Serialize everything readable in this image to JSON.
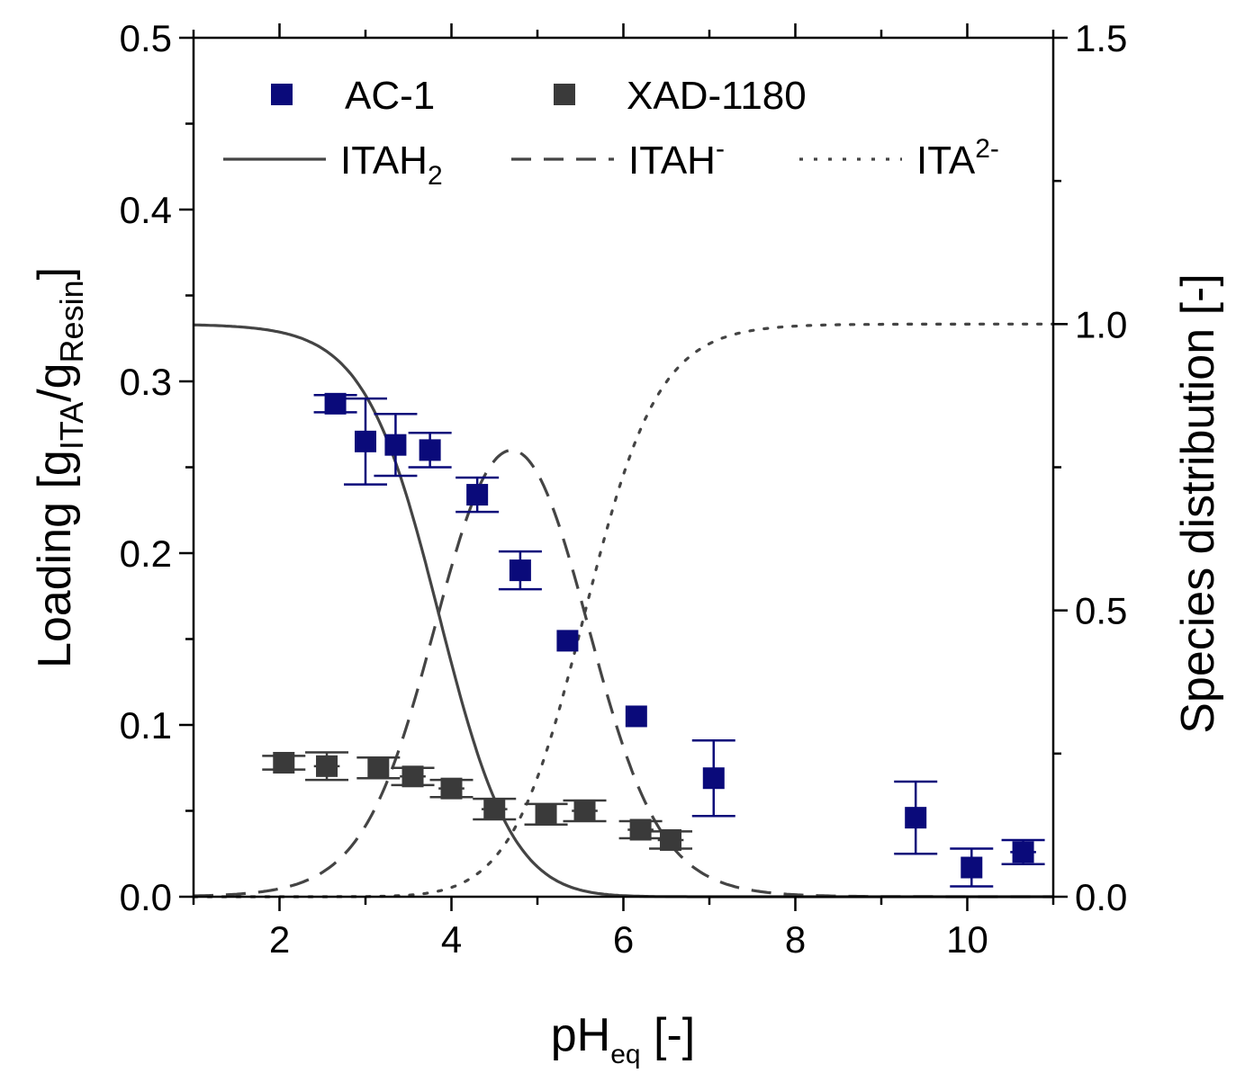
{
  "chart_data": {
    "type": "scatter",
    "x_axis": {
      "label": "pH",
      "label_sub": "eq",
      "label_suffix": " [-]",
      "range": [
        1,
        11
      ],
      "ticks": [
        2,
        4,
        6,
        8,
        10
      ],
      "tick_labels": [
        "2",
        "4",
        "6",
        "8",
        "10"
      ]
    },
    "y_axis_left": {
      "label_parts": [
        "Loading [g",
        "ITA",
        "/g",
        "Resin",
        "]"
      ],
      "range": [
        0,
        0.5
      ],
      "ticks": [
        0.0,
        0.1,
        0.2,
        0.3,
        0.4,
        0.5
      ],
      "tick_labels": [
        "0.0",
        "0.1",
        "0.2",
        "0.3",
        "0.4",
        "0.5"
      ]
    },
    "y_axis_right": {
      "label": "Species distribution [-]",
      "range": [
        0,
        1.5
      ],
      "ticks": [
        0.0,
        0.5,
        1.0,
        1.5
      ],
      "tick_labels": [
        "0.0",
        "0.5",
        "1.0",
        "1.5"
      ]
    },
    "series": [
      {
        "name": "AC-1",
        "color": "#0a0a7a",
        "axis": "left",
        "points": [
          {
            "x": 2.65,
            "y": 0.287,
            "yerr": 0.005,
            "xerr": 0.08
          },
          {
            "x": 3.0,
            "y": 0.265,
            "yerr": 0.025,
            "xerr": 0.0
          },
          {
            "x": 3.35,
            "y": 0.263,
            "yerr": 0.018,
            "xerr": 0.0
          },
          {
            "x": 3.75,
            "y": 0.26,
            "yerr": 0.01,
            "xerr": 0.12
          },
          {
            "x": 4.3,
            "y": 0.234,
            "yerr": 0.01,
            "xerr": 0.1
          },
          {
            "x": 4.8,
            "y": 0.19,
            "yerr": 0.011,
            "xerr": 0.12
          },
          {
            "x": 5.35,
            "y": 0.149,
            "yerr": 0.0,
            "xerr": 0.12
          },
          {
            "x": 6.15,
            "y": 0.105,
            "yerr": 0.0,
            "xerr": 0.12
          },
          {
            "x": 7.05,
            "y": 0.069,
            "yerr": 0.022,
            "xerr": 0.08
          },
          {
            "x": 9.4,
            "y": 0.046,
            "yerr": 0.021,
            "xerr": 0.1
          },
          {
            "x": 10.05,
            "y": 0.017,
            "yerr": 0.011,
            "xerr": 0.1
          },
          {
            "x": 10.65,
            "y": 0.026,
            "yerr": 0.007,
            "xerr": 0.15
          }
        ]
      },
      {
        "name": "XAD-1180",
        "color": "#3a3a3a",
        "axis": "left",
        "points": [
          {
            "x": 2.05,
            "y": 0.078,
            "yerr": 0.004,
            "xerr": 0.12
          },
          {
            "x": 2.55,
            "y": 0.076,
            "yerr": 0.008,
            "xerr": 0.15
          },
          {
            "x": 3.15,
            "y": 0.075,
            "yerr": 0.006,
            "xerr": 0.12
          },
          {
            "x": 3.55,
            "y": 0.07,
            "yerr": 0.005,
            "xerr": 0.15
          },
          {
            "x": 4.0,
            "y": 0.063,
            "yerr": 0.005,
            "xerr": 0.15
          },
          {
            "x": 4.5,
            "y": 0.051,
            "yerr": 0.006,
            "xerr": 0.15
          },
          {
            "x": 5.1,
            "y": 0.048,
            "yerr": 0.006,
            "xerr": 0.12
          },
          {
            "x": 5.55,
            "y": 0.05,
            "yerr": 0.006,
            "xerr": 0.15
          },
          {
            "x": 6.2,
            "y": 0.039,
            "yerr": 0.005,
            "xerr": 0.15
          },
          {
            "x": 6.55,
            "y": 0.033,
            "yerr": 0.005,
            "xerr": 0.15
          }
        ]
      }
    ],
    "curves": [
      {
        "name": "ITAH",
        "sub": "2",
        "sup": "",
        "style": "solid",
        "pKa_model": "H2A"
      },
      {
        "name": "ITAH",
        "sub": "",
        "sup": "-",
        "style": "dashed",
        "pKa_model": "HA-"
      },
      {
        "name": "ITA",
        "sub": "",
        "sup": "2-",
        "style": "dotted",
        "pKa_model": "A2-"
      }
    ],
    "curve_params": {
      "pKa1": 3.85,
      "pKa2": 5.55,
      "curve_color": "#444444"
    }
  }
}
